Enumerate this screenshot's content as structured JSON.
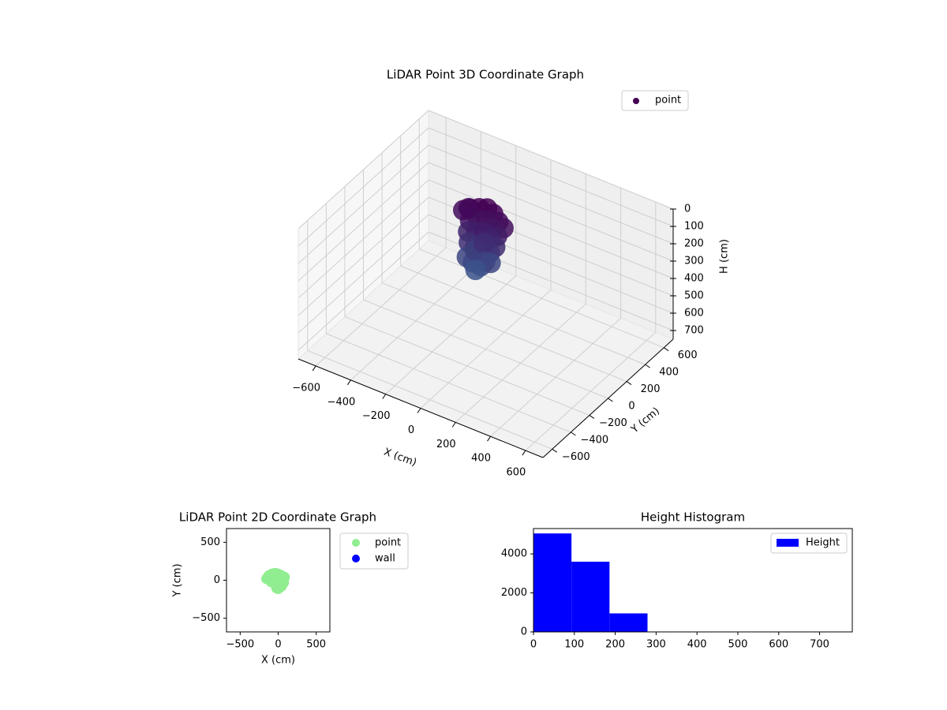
{
  "chart_data": [
    {
      "type": "scatter3d",
      "title": "LiDAR Point 3D Coordinate Graph",
      "x_label": "X (cm)",
      "y_label": "Y (cm)",
      "z_label": "H (cm)",
      "xlim": [
        -700,
        700
      ],
      "ylim": [
        -700,
        700
      ],
      "zlim": [
        750,
        0
      ],
      "xticks": [
        {
          "value": -600,
          "label": "−600"
        },
        {
          "value": -400,
          "label": "−400"
        },
        {
          "value": -200,
          "label": "−200"
        },
        0,
        200,
        400,
        600
      ],
      "yticks": [
        {
          "value": -600,
          "label": "−600"
        },
        {
          "value": -400,
          "label": "−400"
        },
        {
          "value": -200,
          "label": "−200"
        },
        0,
        200,
        400,
        600
      ],
      "zticks": [
        0,
        100,
        200,
        300,
        400,
        500,
        600,
        700
      ],
      "legend": "upper right",
      "grid": true,
      "colors": [
        "#440154",
        "#3b528b"
      ],
      "series": [
        {
          "name": "point",
          "color": "#440154",
          "x": [
            -120,
            -80,
            -40,
            0,
            40,
            80,
            -100,
            -60,
            -20,
            20,
            60,
            -90,
            -50,
            -10,
            30,
            70,
            -70,
            -30,
            10,
            50,
            -60,
            -20,
            20,
            -40,
            0,
            -150,
            -130,
            40,
            60,
            0
          ],
          "y": [
            60,
            80,
            90,
            80,
            60,
            40,
            20,
            30,
            40,
            30,
            10,
            -20,
            -10,
            0,
            -10,
            -30,
            -50,
            -60,
            -60,
            -50,
            -90,
            -100,
            -90,
            -40,
            -20,
            40,
            60,
            -80,
            -60,
            -110
          ],
          "z": [
            20,
            10,
            0,
            10,
            30,
            40,
            60,
            50,
            40,
            60,
            80,
            100,
            90,
            80,
            100,
            120,
            140,
            150,
            160,
            150,
            200,
            210,
            220,
            180,
            130,
            30,
            20,
            190,
            200,
            240
          ]
        }
      ]
    },
    {
      "type": "scatter",
      "title": "LiDAR Point 2D Coordinate Graph",
      "x_label": "X (cm)",
      "y_label": "Y (cm)",
      "xlim": [
        -680,
        680
      ],
      "ylim": [
        -680,
        680
      ],
      "xticks": [
        {
          "value": -500,
          "label": "−500"
        },
        0,
        500
      ],
      "yticks": [
        {
          "value": -500,
          "label": "−500"
        },
        0,
        500
      ],
      "legend": "outside right",
      "series": [
        {
          "name": "point",
          "color": "#90ee90",
          "x": [
            -120,
            -80,
            -40,
            0,
            40,
            80,
            -100,
            -60,
            -20,
            20,
            60,
            -90,
            -50,
            -10,
            30,
            70,
            -30,
            10,
            50,
            -20,
            20,
            0,
            -150,
            40
          ],
          "y": [
            60,
            80,
            90,
            80,
            60,
            40,
            20,
            30,
            40,
            30,
            10,
            -20,
            -10,
            0,
            -10,
            -30,
            -60,
            -60,
            -50,
            -100,
            -90,
            -110,
            20,
            -80
          ]
        },
        {
          "name": "wall",
          "color": "#0000ff",
          "x": [],
          "y": []
        }
      ]
    },
    {
      "type": "histogram",
      "title": "Height Histogram",
      "bins": [
        0,
        93,
        186,
        279,
        372,
        465,
        558,
        651,
        744
      ],
      "values": [
        5050,
        3600,
        950,
        0,
        0,
        0,
        0,
        0
      ],
      "xlim": [
        0,
        780
      ],
      "ylim": [
        0,
        5300
      ],
      "xticks": [
        0,
        100,
        200,
        300,
        400,
        500,
        600,
        700
      ],
      "yticks": [
        0,
        2000,
        4000
      ],
      "legend": "upper right",
      "series_name": "Height",
      "color": "#0000ff"
    }
  ]
}
